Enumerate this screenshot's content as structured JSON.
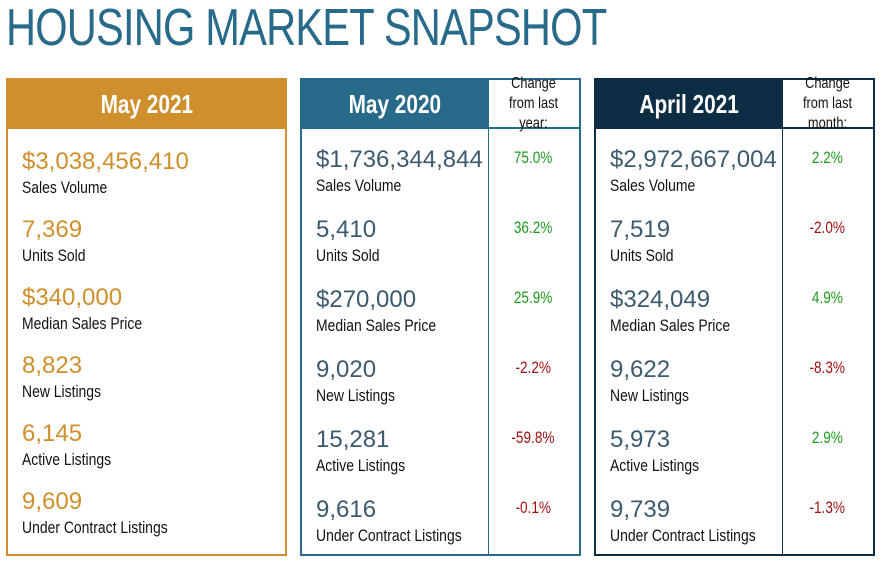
{
  "title": "HOUSING MARKET SNAPSHOT",
  "colors": {
    "current": "#cf8f2c",
    "last_year": "#276a89",
    "last_month": "#0c2d44",
    "positive": "#1f9a1f",
    "negative": "#a01010"
  },
  "current": {
    "header": "May 2021",
    "rows": [
      {
        "value": "$3,038,456,410",
        "label": "Sales Volume"
      },
      {
        "value": "7,369",
        "label": "Units Sold"
      },
      {
        "value": "$340,000",
        "label": "Median Sales Price"
      },
      {
        "value": "8,823",
        "label": "New Listings"
      },
      {
        "value": "6,145",
        "label": "Active Listings"
      },
      {
        "value": "9,609",
        "label": "Under Contract Listings"
      }
    ]
  },
  "last_year": {
    "header": "May 2020",
    "change_header": "Change from last year:",
    "rows": [
      {
        "value": "$1,736,344,844",
        "label": "Sales Volume",
        "change": "75.0%"
      },
      {
        "value": "5,410",
        "label": "Units Sold",
        "change": "36.2%"
      },
      {
        "value": "$270,000",
        "label": "Median Sales Price",
        "change": "25.9%"
      },
      {
        "value": "9,020",
        "label": "New Listings",
        "change": "-2.2%"
      },
      {
        "value": "15,281",
        "label": "Active Listings",
        "change": "-59.8%"
      },
      {
        "value": "9,616",
        "label": "Under Contract Listings",
        "change": "-0.1%"
      }
    ]
  },
  "last_month": {
    "header": "April 2021",
    "change_header": "Change from last month:",
    "rows": [
      {
        "value": "$2,972,667,004",
        "label": "Sales Volume",
        "change": "2.2%"
      },
      {
        "value": "7,519",
        "label": "Units Sold",
        "change": "-2.0%"
      },
      {
        "value": "$324,049",
        "label": "Median Sales Price",
        "change": "4.9%"
      },
      {
        "value": "9,622",
        "label": "New Listings",
        "change": "-8.3%"
      },
      {
        "value": "5,973",
        "label": "Active Listings",
        "change": "2.9%"
      },
      {
        "value": "9,739",
        "label": "Under Contract Listings",
        "change": "-1.3%"
      }
    ]
  }
}
